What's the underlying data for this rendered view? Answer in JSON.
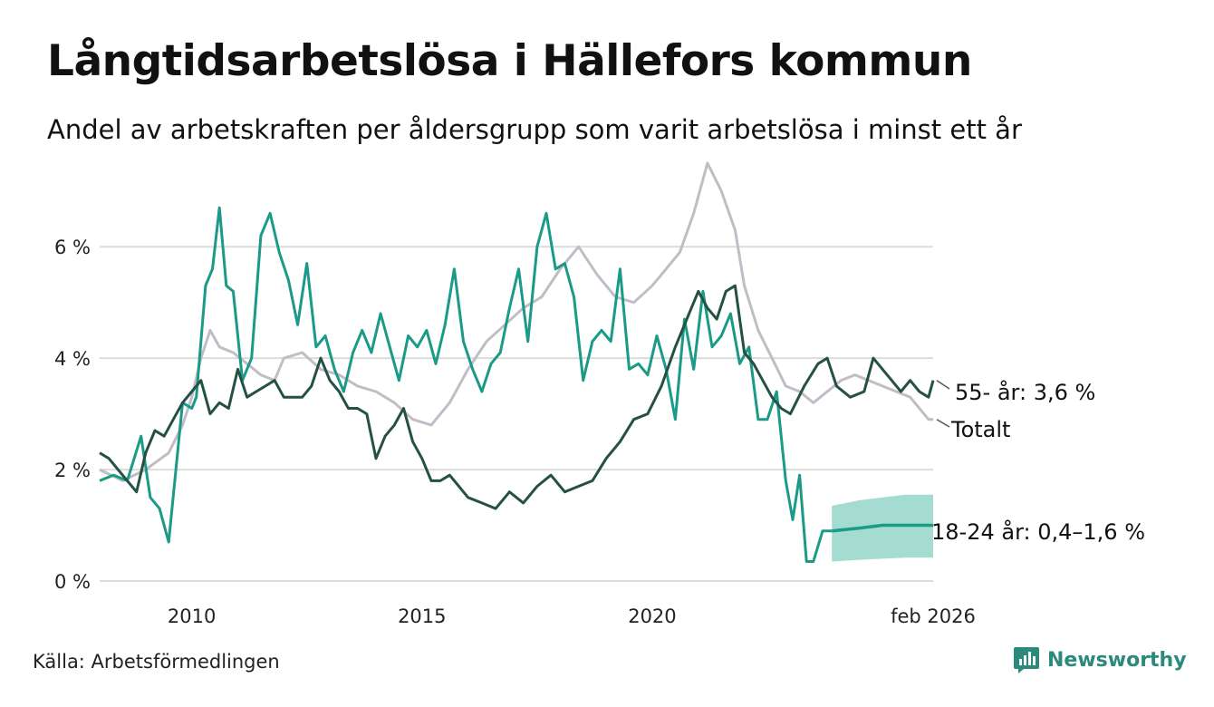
{
  "chart_data": {
    "type": "line",
    "title": "Långtidsarbetslösa i Hällefors kommun",
    "subtitle": "Andel av arbetskraften per åldersgrupp som varit arbetslösa i minst ett år",
    "source": "Källa: Arbetsförmedlingen",
    "brand": "Newsworthy",
    "x_range": [
      2008.0,
      2026.1
    ],
    "ylim": [
      0,
      7.5
    ],
    "y_ticks": [
      0,
      2,
      4,
      6
    ],
    "y_tick_labels": [
      "0 %",
      "2 %",
      "4 %",
      "6 %"
    ],
    "x_ticks": [
      2010,
      2015,
      2020,
      2026.1
    ],
    "x_tick_labels": [
      "2010",
      "2015",
      "2020",
      "feb 2026"
    ],
    "colors": {
      "totalt": "#c2bcc6",
      "young": "#1a9a87",
      "band": "#8ed3c6",
      "old": "#245144",
      "grid": "#dcdcdc"
    },
    "series": [
      {
        "name": "Totalt",
        "label": "Totalt",
        "color": "#c2bcc6",
        "x": [
          2008.0,
          2008.5,
          2009.0,
          2009.5,
          2009.8,
          2010.0,
          2010.2,
          2010.4,
          2010.6,
          2010.9,
          2011.2,
          2011.5,
          2011.8,
          2012.0,
          2012.4,
          2012.8,
          2013.2,
          2013.6,
          2014.0,
          2014.4,
          2014.8,
          2015.2,
          2015.6,
          2016.0,
          2016.4,
          2016.8,
          2017.2,
          2017.6,
          2018.0,
          2018.4,
          2018.8,
          2019.2,
          2019.6,
          2020.0,
          2020.3,
          2020.6,
          2020.9,
          2021.2,
          2021.5,
          2021.8,
          2022.0,
          2022.3,
          2022.6,
          2022.9,
          2023.2,
          2023.5,
          2023.8,
          2024.1,
          2024.4,
          2024.7,
          2025.0,
          2025.3,
          2025.6,
          2025.8,
          2026.0,
          2026.1
        ],
        "values": [
          2.0,
          1.8,
          2.0,
          2.3,
          2.8,
          3.3,
          4.0,
          4.5,
          4.2,
          4.1,
          3.9,
          3.7,
          3.6,
          4.0,
          4.1,
          3.8,
          3.7,
          3.5,
          3.4,
          3.2,
          2.9,
          2.8,
          3.2,
          3.8,
          4.3,
          4.6,
          4.9,
          5.1,
          5.6,
          6.0,
          5.5,
          5.1,
          5.0,
          5.3,
          5.6,
          5.9,
          6.6,
          7.5,
          7.0,
          6.3,
          5.3,
          4.5,
          4.0,
          3.5,
          3.4,
          3.2,
          3.4,
          3.6,
          3.7,
          3.6,
          3.5,
          3.4,
          3.3,
          3.1,
          2.9,
          2.9
        ]
      },
      {
        "name": "18-24 år",
        "label": "18-24 år: 0,4–1,6 %",
        "color": "#1a9a87",
        "x": [
          2008.0,
          2008.3,
          2008.6,
          2008.9,
          2009.1,
          2009.3,
          2009.5,
          2009.8,
          2010.0,
          2010.1,
          2010.2,
          2010.3,
          2010.45,
          2010.6,
          2010.75,
          2010.9,
          2011.1,
          2011.3,
          2011.5,
          2011.7,
          2011.9,
          2012.1,
          2012.3,
          2012.5,
          2012.7,
          2012.9,
          2013.1,
          2013.3,
          2013.5,
          2013.7,
          2013.9,
          2014.1,
          2014.3,
          2014.5,
          2014.7,
          2014.9,
          2015.1,
          2015.3,
          2015.5,
          2015.7,
          2015.9,
          2016.1,
          2016.3,
          2016.5,
          2016.7,
          2016.9,
          2017.1,
          2017.3,
          2017.5,
          2017.7,
          2017.9,
          2018.1,
          2018.3,
          2018.5,
          2018.7,
          2018.9,
          2019.1,
          2019.3,
          2019.5,
          2019.7,
          2019.9,
          2020.1,
          2020.3,
          2020.5,
          2020.7,
          2020.9,
          2021.1,
          2021.3,
          2021.5,
          2021.7,
          2021.9,
          2022.1,
          2022.3,
          2022.5,
          2022.7,
          2022.9,
          2023.05,
          2023.2,
          2023.35,
          2023.5,
          2023.7,
          2023.9
        ],
        "values": [
          1.8,
          1.9,
          1.8,
          2.6,
          1.5,
          1.3,
          0.7,
          3.2,
          3.1,
          3.3,
          4.3,
          5.3,
          5.6,
          6.7,
          5.3,
          5.2,
          3.6,
          4.0,
          6.2,
          6.6,
          5.9,
          5.4,
          4.6,
          5.7,
          4.2,
          4.4,
          3.8,
          3.4,
          4.1,
          4.5,
          4.1,
          4.8,
          4.2,
          3.6,
          4.4,
          4.2,
          4.5,
          3.9,
          4.6,
          5.6,
          4.3,
          3.8,
          3.4,
          3.9,
          4.1,
          4.9,
          5.6,
          4.3,
          6.0,
          6.6,
          5.6,
          5.7,
          5.1,
          3.6,
          4.3,
          4.5,
          4.3,
          5.6,
          3.8,
          3.9,
          3.7,
          4.4,
          3.8,
          2.9,
          4.7,
          3.8,
          5.2,
          4.2,
          4.4,
          4.8,
          3.9,
          4.2,
          2.9,
          2.9,
          3.4,
          1.8,
          1.1,
          1.9,
          0.35,
          0.35,
          0.9,
          0.9
        ]
      },
      {
        "name": "18-24 år (prognos)",
        "label": "",
        "color": "#1a9a87",
        "x": [
          2023.9,
          2024.5,
          2025.0,
          2025.5,
          2026.1
        ],
        "values": [
          0.9,
          0.95,
          1.0,
          1.0,
          1.0
        ],
        "lower": [
          0.35,
          0.38,
          0.4,
          0.42,
          0.42
        ],
        "upper": [
          1.35,
          1.45,
          1.5,
          1.55,
          1.55
        ]
      },
      {
        "name": "55- år",
        "label": "55- år: 3,6 %",
        "color": "#245144",
        "x": [
          2008.0,
          2008.2,
          2008.4,
          2008.6,
          2008.8,
          2009.0,
          2009.2,
          2009.4,
          2009.6,
          2009.8,
          2010.0,
          2010.2,
          2010.4,
          2010.6,
          2010.8,
          2011.0,
          2011.2,
          2011.4,
          2011.6,
          2011.8,
          2012.0,
          2012.2,
          2012.4,
          2012.6,
          2012.8,
          2013.0,
          2013.2,
          2013.4,
          2013.6,
          2013.8,
          2014.0,
          2014.2,
          2014.4,
          2014.6,
          2014.8,
          2015.0,
          2015.2,
          2015.4,
          2015.6,
          2015.8,
          2016.0,
          2016.3,
          2016.6,
          2016.9,
          2017.2,
          2017.5,
          2017.8,
          2018.1,
          2018.4,
          2018.7,
          2019.0,
          2019.3,
          2019.6,
          2019.9,
          2020.2,
          2020.5,
          2020.8,
          2021.0,
          2021.2,
          2021.4,
          2021.6,
          2021.8,
          2022.0,
          2022.2,
          2022.4,
          2022.6,
          2022.8,
          2023.0,
          2023.3,
          2023.6,
          2023.8,
          2024.0,
          2024.3,
          2024.6,
          2024.8,
          2025.0,
          2025.2,
          2025.4,
          2025.6,
          2025.8,
          2026.0,
          2026.1
        ],
        "values": [
          2.3,
          2.2,
          2.0,
          1.8,
          1.6,
          2.3,
          2.7,
          2.6,
          2.9,
          3.2,
          3.4,
          3.6,
          3.0,
          3.2,
          3.1,
          3.8,
          3.3,
          3.4,
          3.5,
          3.6,
          3.3,
          3.3,
          3.3,
          3.5,
          4.0,
          3.6,
          3.4,
          3.1,
          3.1,
          3.0,
          2.2,
          2.6,
          2.8,
          3.1,
          2.5,
          2.2,
          1.8,
          1.8,
          1.9,
          1.7,
          1.5,
          1.4,
          1.3,
          1.6,
          1.4,
          1.7,
          1.9,
          1.6,
          1.7,
          1.8,
          2.2,
          2.5,
          2.9,
          3.0,
          3.5,
          4.2,
          4.8,
          5.2,
          4.9,
          4.7,
          5.2,
          5.3,
          4.1,
          3.9,
          3.6,
          3.3,
          3.1,
          3.0,
          3.5,
          3.9,
          4.0,
          3.5,
          3.3,
          3.4,
          4.0,
          3.8,
          3.6,
          3.4,
          3.6,
          3.4,
          3.3,
          3.6
        ]
      }
    ]
  }
}
